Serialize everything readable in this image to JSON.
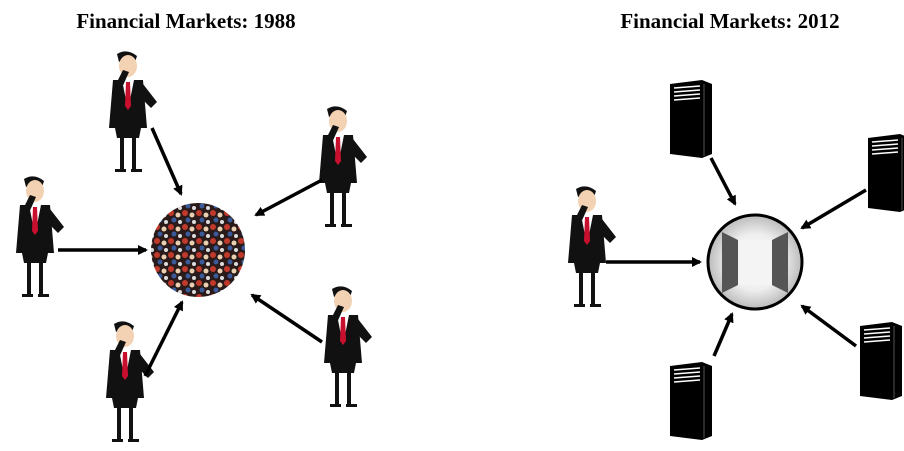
{
  "left": {
    "title": "Financial Markets: 1988"
  },
  "right": {
    "title": "Financial Markets: 2012"
  }
}
